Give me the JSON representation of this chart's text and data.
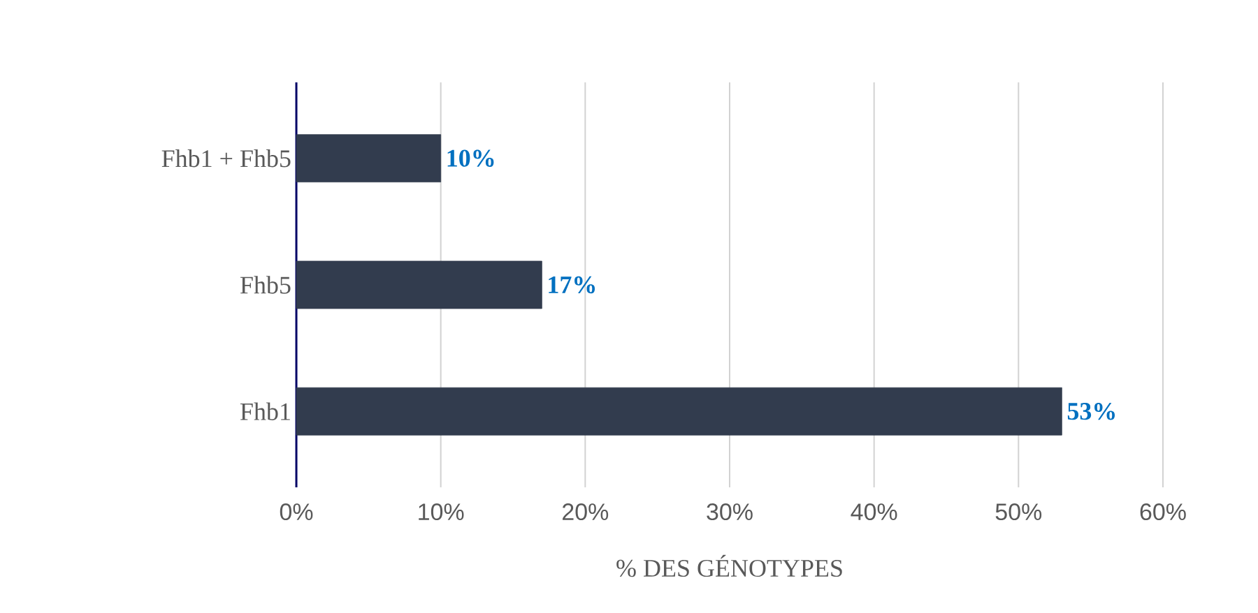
{
  "chart_data": {
    "type": "bar",
    "orientation": "horizontal",
    "xlabel": "% DES GÉNOTYPES",
    "categories": [
      "Fhb1 + Fhb5",
      "Fhb5",
      "Fhb1"
    ],
    "values": [
      10,
      17,
      53
    ],
    "color": "#323c4e",
    "value_labels": [
      "10%",
      "17%",
      "53%"
    ],
    "xlim": [
      0,
      60
    ],
    "xticks": [
      {
        "value": 0,
        "label": "0%"
      },
      {
        "value": 10,
        "label": "10%"
      },
      {
        "value": 20,
        "label": "20%"
      },
      {
        "value": 30,
        "label": "30%"
      },
      {
        "value": 40,
        "label": "40%"
      },
      {
        "value": 50,
        "label": "50%"
      },
      {
        "value": 60,
        "label": "60%"
      }
    ],
    "grid": "x"
  }
}
